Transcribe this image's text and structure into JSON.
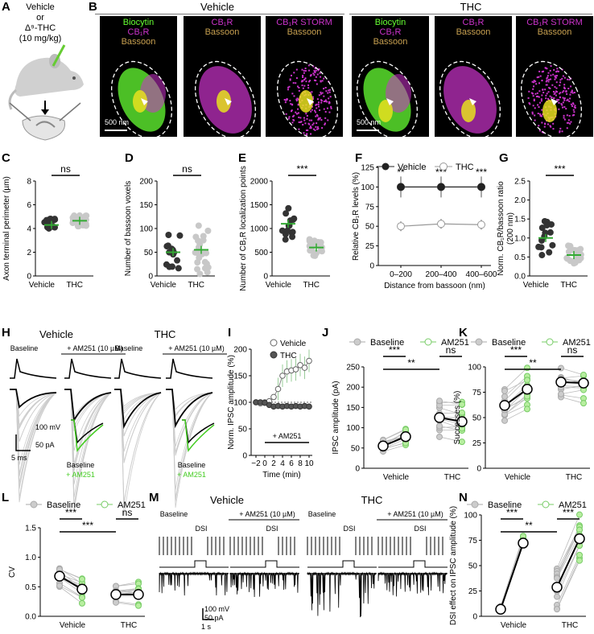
{
  "panel_labels": {
    "A": "A",
    "B": "B",
    "C": "C",
    "D": "D",
    "E": "E",
    "F": "F",
    "G": "G",
    "H": "H",
    "I": "I",
    "J": "J",
    "K": "K",
    "L": "L",
    "M": "M",
    "N": "N"
  },
  "panel_a": {
    "vehicle": "Vehicle",
    "or": "or",
    "thc": "Δ⁹-THC",
    "dose": "(10 mg/kg)"
  },
  "panel_b": {
    "vehicle_header": "Vehicle",
    "thc_header": "THC",
    "cap_biocytin": "Biocytin",
    "cap_cb1r": "CB₁R",
    "cap_bassoon": "Bassoon",
    "cap_storm": "CB₁R STORM",
    "scale": "500 nm",
    "colors": {
      "biocytin": "#66ff33",
      "cb1r": "#cc33cc",
      "bassoon": "#c8a050"
    }
  },
  "groups": {
    "vehicle": "Vehicle",
    "thc": "THC"
  },
  "stats": {
    "ns": "ns",
    "p3": "***",
    "p2": "**"
  },
  "legend": {
    "vehicle": "Vehicle",
    "thc": "THC",
    "baseline": "Baseline",
    "am251": "AM251"
  },
  "panel_c": {
    "ylabel": "Axon terminal perimeter (µm)",
    "yticks": [
      "0",
      "2",
      "4",
      "6",
      "8"
    ]
  },
  "panel_d": {
    "ylabel": "Number of bassoon voxels",
    "yticks": [
      "0",
      "50",
      "100",
      "150",
      "200"
    ]
  },
  "panel_e": {
    "ylabel": "Number of CB₁R localization points",
    "yticks": [
      "0",
      "500",
      "1000",
      "1500",
      "2000"
    ]
  },
  "panel_f": {
    "ylabel": "Relative CB₁R levels (%)",
    "xlabel": "Distance from bassoon (nm)",
    "yticks": [
      "0",
      "25",
      "50",
      "75",
      "100",
      "125"
    ],
    "xticks": [
      "0–200",
      "200–400",
      "400–600"
    ]
  },
  "panel_g": {
    "ylabel": "Norm. CB₁R/bassoon ratio",
    "ylabel2": "(200 nm)",
    "yticks": [
      "0.0",
      "0.5",
      "1.0",
      "1.5",
      "2.0",
      "2.5"
    ]
  },
  "panel_h": {
    "vehicle": "Vehicle",
    "thc": "THC",
    "baseline": "Baseline",
    "am251": "+ AM251 (10 µM)",
    "scale_v": "100 mV",
    "scale_i": "50 pA",
    "scale_t": "5 ms",
    "inset_base": "Baseline",
    "inset_am": "+ AM251"
  },
  "panel_i": {
    "ylabel": "Norm. IPSC amplitude (%)",
    "xlabel": "Time (min)",
    "xticks": [
      "−2",
      "0",
      "2",
      "4",
      "6",
      "8",
      "10"
    ],
    "yticks": [
      "0",
      "50",
      "100",
      "150",
      "200"
    ],
    "drug": "+ AM251"
  },
  "panel_j": {
    "ylabel": "IPSC amplitude (pA)",
    "yticks": [
      "0",
      "50",
      "100",
      "150",
      "200",
      "250"
    ]
  },
  "panel_k": {
    "ylabel": "Successes (%)",
    "yticks": [
      "0",
      "25",
      "50",
      "75",
      "100"
    ]
  },
  "panel_l": {
    "ylabel": "CV",
    "yticks": [
      "0.0",
      "0.5",
      "1.0",
      "1.5"
    ]
  },
  "panel_m": {
    "vehicle": "Vehicle",
    "thc": "THC",
    "baseline": "Baseline",
    "am251": "+ AM251 (10 µM)",
    "dsi": "DSI",
    "scale_v": "100 mV",
    "scale_i": "50 pA",
    "scale_t": "1 s"
  },
  "panel_n": {
    "ylabel": "DSI effect on IPSC amplitude (%)",
    "yticks": [
      "0",
      "25",
      "50",
      "75",
      "100"
    ]
  },
  "chart_data": [
    {
      "panel": "C",
      "type": "scatter",
      "categories": [
        "Vehicle",
        "THC"
      ],
      "ylim": [
        0,
        8
      ],
      "series": [
        {
          "name": "Vehicle",
          "mean": 4.3
        },
        {
          "name": "THC",
          "mean": 4.65
        }
      ]
    },
    {
      "panel": "D",
      "type": "scatter",
      "categories": [
        "Vehicle",
        "THC"
      ],
      "ylim": [
        0,
        200
      ],
      "series": [
        {
          "name": "Vehicle",
          "mean": 50
        },
        {
          "name": "THC",
          "mean": 55
        }
      ]
    },
    {
      "panel": "E",
      "type": "scatter",
      "categories": [
        "Vehicle",
        "THC"
      ],
      "ylim": [
        0,
        2000
      ],
      "series": [
        {
          "name": "Vehicle",
          "mean": 1100
        },
        {
          "name": "THC",
          "mean": 600
        }
      ]
    },
    {
      "panel": "F",
      "type": "line",
      "categories": [
        "0–200",
        "200–400",
        "400–600"
      ],
      "ylim": [
        0,
        125
      ],
      "series": [
        {
          "name": "Vehicle",
          "values": [
            100,
            100,
            100
          ]
        },
        {
          "name": "THC",
          "values": [
            50,
            53,
            52
          ]
        }
      ]
    },
    {
      "panel": "G",
      "type": "scatter",
      "categories": [
        "Vehicle",
        "THC"
      ],
      "ylim": [
        0,
        2.5
      ],
      "series": [
        {
          "name": "Vehicle",
          "mean": 1.0
        },
        {
          "name": "THC",
          "mean": 0.55
        }
      ]
    },
    {
      "panel": "I",
      "type": "line",
      "x": [
        -2,
        -1,
        0,
        1,
        2,
        3,
        4,
        5,
        6,
        7,
        8,
        9,
        10
      ],
      "ylim": [
        0,
        200
      ],
      "series": [
        {
          "name": "Vehicle",
          "values": [
            100,
            98,
            100,
            102,
            110,
            125,
            150,
            158,
            160,
            162,
            170,
            165,
            178
          ]
        },
        {
          "name": "THC",
          "values": [
            100,
            100,
            99,
            95,
            92,
            93,
            92,
            93,
            92,
            93,
            92,
            93,
            92
          ]
        }
      ]
    },
    {
      "panel": "J",
      "type": "scatter",
      "categories": [
        "Vehicle",
        "THC"
      ],
      "ylim": [
        0,
        250
      ],
      "series": [
        {
          "name": "Baseline",
          "means": [
            55,
            125
          ]
        },
        {
          "name": "AM251",
          "means": [
            78,
            115
          ]
        }
      ]
    },
    {
      "panel": "K",
      "type": "scatter",
      "categories": [
        "Vehicle",
        "THC"
      ],
      "ylim": [
        0,
        100
      ],
      "series": [
        {
          "name": "Baseline",
          "means": [
            62,
            85
          ]
        },
        {
          "name": "AM251",
          "means": [
            78,
            84
          ]
        }
      ]
    },
    {
      "panel": "L",
      "type": "scatter",
      "categories": [
        "Vehicle",
        "THC"
      ],
      "ylim": [
        0,
        1.5
      ],
      "series": [
        {
          "name": "Baseline",
          "means": [
            0.68,
            0.37
          ]
        },
        {
          "name": "AM251",
          "means": [
            0.46,
            0.37
          ]
        }
      ]
    },
    {
      "panel": "N",
      "type": "scatter",
      "categories": [
        "Vehicle",
        "THC"
      ],
      "ylim": [
        0,
        115
      ],
      "series": [
        {
          "name": "Baseline",
          "means": [
            8,
            33
          ]
        },
        {
          "name": "AM251",
          "means": [
            83,
            88
          ]
        }
      ]
    }
  ]
}
